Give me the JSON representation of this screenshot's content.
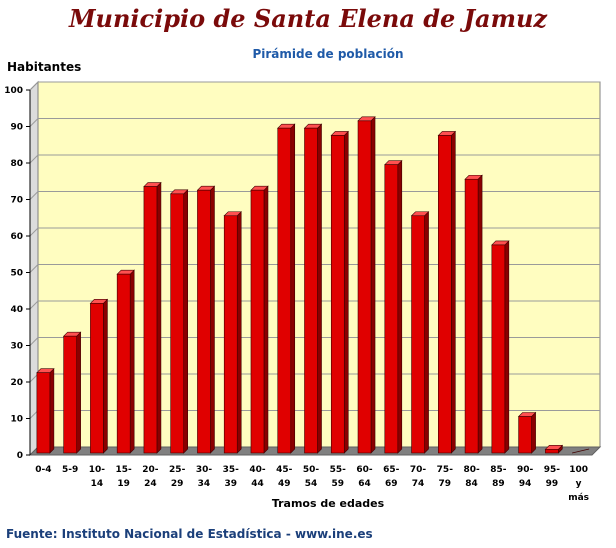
{
  "header": {
    "title": "Municipio de Santa Elena de Jamuz",
    "subtitle": "Pirámide de población"
  },
  "footer": {
    "source": "Fuente: Instituto Nacional de Estadística - www.ine.es"
  },
  "colors": {
    "plot_background": "#fffdc0",
    "bar_front": "#e00000",
    "bar_side": "#8a0000",
    "bar_top": "#ff5050",
    "floor": "#808080"
  },
  "chart_data": {
    "type": "bar",
    "title": "Pirámide de población",
    "ylabel": "Habitantes",
    "xlabel": "Tramos de edades",
    "ylim": [
      0,
      100
    ],
    "yticks": [
      0,
      10,
      20,
      30,
      40,
      50,
      60,
      70,
      80,
      90,
      100
    ],
    "grid": true,
    "categories": [
      [
        "0-4"
      ],
      [
        "5-9"
      ],
      [
        "10-",
        "14"
      ],
      [
        "15-",
        "19"
      ],
      [
        "20-",
        "24"
      ],
      [
        "25-",
        "29"
      ],
      [
        "30-",
        "34"
      ],
      [
        "35-",
        "39"
      ],
      [
        "40-",
        "44"
      ],
      [
        "45-",
        "49"
      ],
      [
        "50-",
        "54"
      ],
      [
        "55-",
        "59"
      ],
      [
        "60-",
        "64"
      ],
      [
        "65-",
        "69"
      ],
      [
        "70-",
        "74"
      ],
      [
        "75-",
        "79"
      ],
      [
        "80-",
        "84"
      ],
      [
        "85-",
        "89"
      ],
      [
        "90-",
        "94"
      ],
      [
        "95-",
        "99"
      ],
      [
        "100",
        "y",
        "más"
      ]
    ],
    "values": [
      22,
      32,
      41,
      49,
      73,
      71,
      72,
      65,
      72,
      89,
      89,
      87,
      91,
      79,
      65,
      87,
      75,
      57,
      10,
      1,
      0
    ]
  }
}
